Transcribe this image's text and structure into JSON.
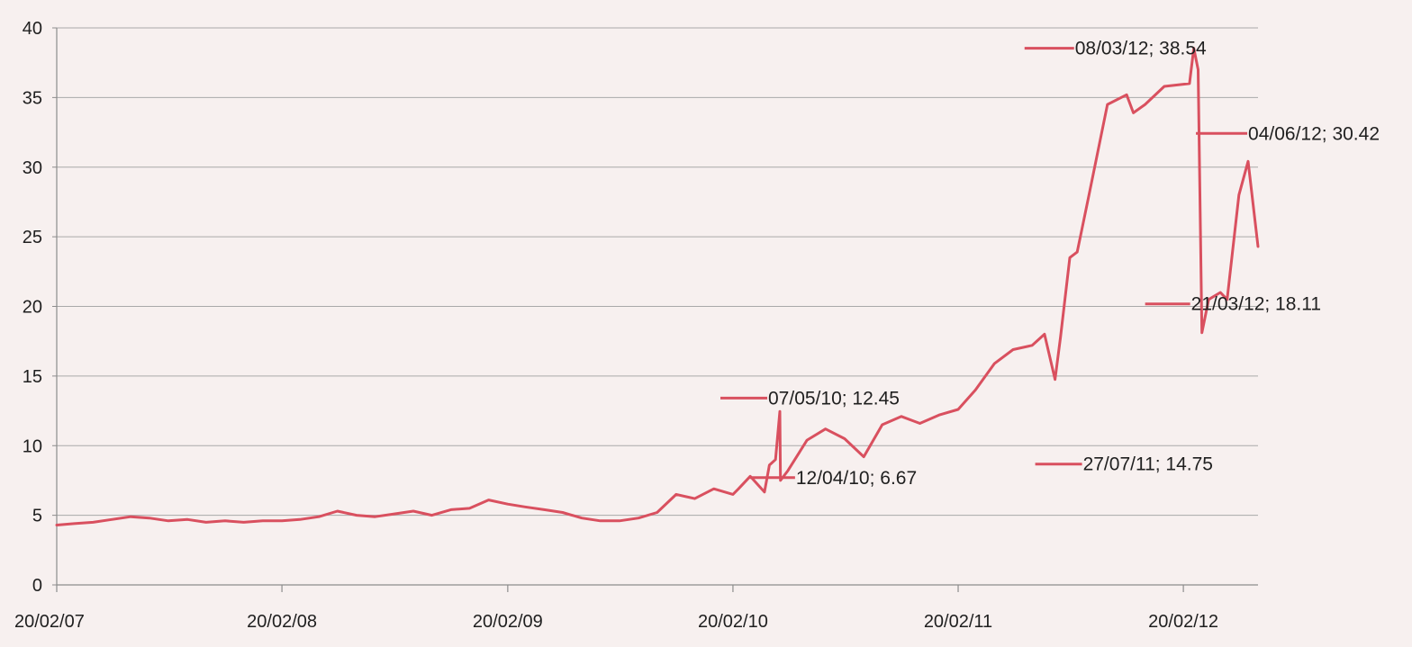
{
  "chart_data": {
    "type": "line",
    "title": "",
    "xlabel": "",
    "ylabel": "",
    "ylim": [
      0,
      40
    ],
    "yticks": [
      0,
      5,
      10,
      15,
      20,
      25,
      30,
      35,
      40
    ],
    "xlim": [
      "20/02/07",
      "20/06/12"
    ],
    "xticks": [
      "20/02/07",
      "20/02/08",
      "20/02/09",
      "20/02/10",
      "20/02/11",
      "20/02/12"
    ],
    "grid": true,
    "legend": "none",
    "colors": {
      "line": "#d9505f",
      "grid": "#a9a9a9",
      "axis": "#8c8c8c",
      "background": "#f7f0ef"
    },
    "series": [
      {
        "x": [
          "20/02/07",
          "20/03/07",
          "20/04/07",
          "20/05/07",
          "20/06/07",
          "20/07/07",
          "20/08/07",
          "20/09/07",
          "20/10/07",
          "20/11/07",
          "20/12/07",
          "20/01/08",
          "20/02/08",
          "20/03/08",
          "20/04/08",
          "20/05/08",
          "20/06/08",
          "20/07/08",
          "20/08/08",
          "20/09/08",
          "20/10/08",
          "20/11/08",
          "20/12/08",
          "20/01/09",
          "20/02/09",
          "20/03/09",
          "20/04/09",
          "20/05/09",
          "20/06/09",
          "20/07/09",
          "20/08/09",
          "20/09/09",
          "20/10/09",
          "20/11/09",
          "20/12/09",
          "20/01/10",
          "20/02/10",
          "01/03/10",
          "20/03/10",
          "12/04/10",
          "20/04/10",
          "30/04/10",
          "07/05/10",
          "08/05/10",
          "20/05/10",
          "20/06/10",
          "20/07/10",
          "20/08/10",
          "20/09/10",
          "20/10/10",
          "20/11/10",
          "20/12/10",
          "20/01/11",
          "20/02/11",
          "20/03/11",
          "20/04/11",
          "20/05/11",
          "20/06/11",
          "10/07/11",
          "27/07/11",
          "05/08/11",
          "20/08/11",
          "01/09/11",
          "20/09/11",
          "20/10/11",
          "20/11/11",
          "01/12/11",
          "20/12/11",
          "20/01/12",
          "01/03/12",
          "08/03/12",
          "15/03/12",
          "21/03/12",
          "01/04/12",
          "20/04/12",
          "01/05/12",
          "20/05/12",
          "04/06/12",
          "20/06/12"
        ],
        "y": [
          4.3,
          4.4,
          4.5,
          4.7,
          4.9,
          4.8,
          4.6,
          4.7,
          4.5,
          4.6,
          4.5,
          4.6,
          4.6,
          4.7,
          4.9,
          5.3,
          5.0,
          4.9,
          5.1,
          5.3,
          5.0,
          5.4,
          5.5,
          6.1,
          5.8,
          5.6,
          5.4,
          5.2,
          4.8,
          4.6,
          4.6,
          4.8,
          5.2,
          6.5,
          6.2,
          6.9,
          6.5,
          6.9,
          7.8,
          6.67,
          8.6,
          9.0,
          12.45,
          7.5,
          8.2,
          10.4,
          11.2,
          10.5,
          9.2,
          11.5,
          12.1,
          11.6,
          12.2,
          12.6,
          14.0,
          15.9,
          16.9,
          17.2,
          18.0,
          14.75,
          17.8,
          23.5,
          23.9,
          28.0,
          34.5,
          35.2,
          33.9,
          34.5,
          35.8,
          36.0,
          38.54,
          37.0,
          18.11,
          20.5,
          21.0,
          20.5,
          28.0,
          30.42,
          24.3
        ]
      }
    ],
    "annotations": [
      {
        "date": "08/03/12",
        "value": 38.54,
        "label": "08/03/12; 38.54"
      },
      {
        "date": "04/06/12",
        "value": 30.42,
        "label": "04/06/12; 30.42"
      },
      {
        "date": "21/03/12",
        "value": 18.11,
        "label": "21/03/12; 18.11"
      },
      {
        "date": "27/07/11",
        "value": 14.75,
        "label": "27/07/11; 14.75"
      },
      {
        "date": "07/05/10",
        "value": 12.45,
        "label": "07/05/10; 12.45"
      },
      {
        "date": "12/04/10",
        "value": 6.67,
        "label": "12/04/10; 6.67"
      }
    ]
  }
}
